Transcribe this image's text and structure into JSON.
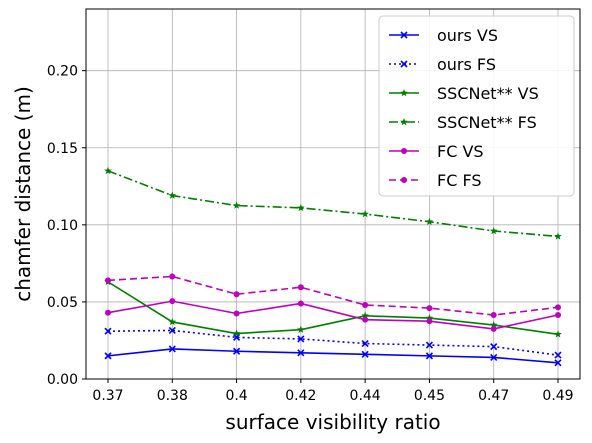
{
  "chart_data": {
    "type": "line",
    "title": "",
    "xlabel": "surface visibility ratio",
    "ylabel": "chamfer distance (m)",
    "categories": [
      "0.37",
      "0.38",
      "0.4",
      "0.42",
      "0.44",
      "0.45",
      "0.47",
      "0.49"
    ],
    "ylim": [
      0,
      0.24
    ],
    "yticks": [
      "0.00",
      "0.05",
      "0.10",
      "0.15",
      "0.20"
    ],
    "grid": true,
    "legend_position": "top-right",
    "series": [
      {
        "name": "ours VS",
        "color": "#0000ff",
        "dash": "solid",
        "marker": "x",
        "values": [
          0.015,
          0.0195,
          0.018,
          0.017,
          0.016,
          0.015,
          0.014,
          0.0105
        ]
      },
      {
        "name": "ours FS",
        "color": "#0000ff",
        "dash": "dotted",
        "marker": "x",
        "values": [
          0.031,
          0.0315,
          0.027,
          0.026,
          0.023,
          0.022,
          0.021,
          0.0155
        ]
      },
      {
        "name": "SSCNet** VS",
        "color": "#008000",
        "dash": "solid",
        "marker": "star",
        "values": [
          0.063,
          0.037,
          0.0295,
          0.032,
          0.041,
          0.0395,
          0.035,
          0.029
        ]
      },
      {
        "name": "SSCNet** FS",
        "color": "#008000",
        "dash": "dashdot",
        "marker": "star",
        "values": [
          0.135,
          0.119,
          0.1125,
          0.111,
          0.107,
          0.102,
          0.096,
          0.0925
        ]
      },
      {
        "name": "FC VS",
        "color": "#bf00bf",
        "dash": "solid",
        "marker": "circle",
        "values": [
          0.043,
          0.0505,
          0.0425,
          0.049,
          0.0385,
          0.0375,
          0.0325,
          0.0415
        ]
      },
      {
        "name": "FC FS",
        "color": "#bf00bf",
        "dash": "dashed",
        "marker": "circle",
        "values": [
          0.064,
          0.0665,
          0.055,
          0.0595,
          0.048,
          0.046,
          0.0415,
          0.0465
        ]
      }
    ]
  }
}
